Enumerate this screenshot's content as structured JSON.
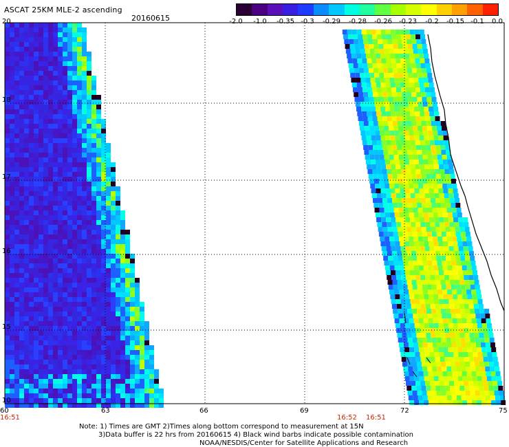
{
  "header": {
    "title": "ASCAT 25KM MLE-2 ascending",
    "date": "20160615"
  },
  "colorbar": {
    "labels": [
      "-2.0",
      "-1.0",
      "-0.35",
      "-0.3",
      "-0.29",
      "-0.28",
      "-0.26",
      "-0.23",
      "-0.2",
      "-0.15",
      "-0.1",
      "0.0"
    ],
    "colors": [
      "#2a0033",
      "#4b0082",
      "#5a10b8",
      "#3a1ee0",
      "#1e3cff",
      "#0a8cff",
      "#00c8ff",
      "#00ffe0",
      "#20ffa0",
      "#60ff40",
      "#a8ff00",
      "#d8ff00",
      "#ffff00",
      "#ffd000",
      "#ffa000",
      "#ff6000",
      "#ff2000"
    ]
  },
  "axes": {
    "lat_labels": [
      "20",
      "18",
      "17",
      "16",
      "15",
      "10"
    ],
    "lon_labels": [
      "60",
      "63",
      "66",
      "69",
      "72",
      "75"
    ]
  },
  "times": {
    "left": "16:51",
    "mid_a": "16:52",
    "mid_b": "16:51"
  },
  "notes": {
    "line1": "Note: 1) Times are GMT 2)Times along bottom correspond to measurement at 15N",
    "line2": "3)Data buffer is 22 hrs from 20160615 4) Black wind barbs indicate possible contamination",
    "line3": "NOAA/NESDIS/Center for Satellite Applications and Research"
  }
}
